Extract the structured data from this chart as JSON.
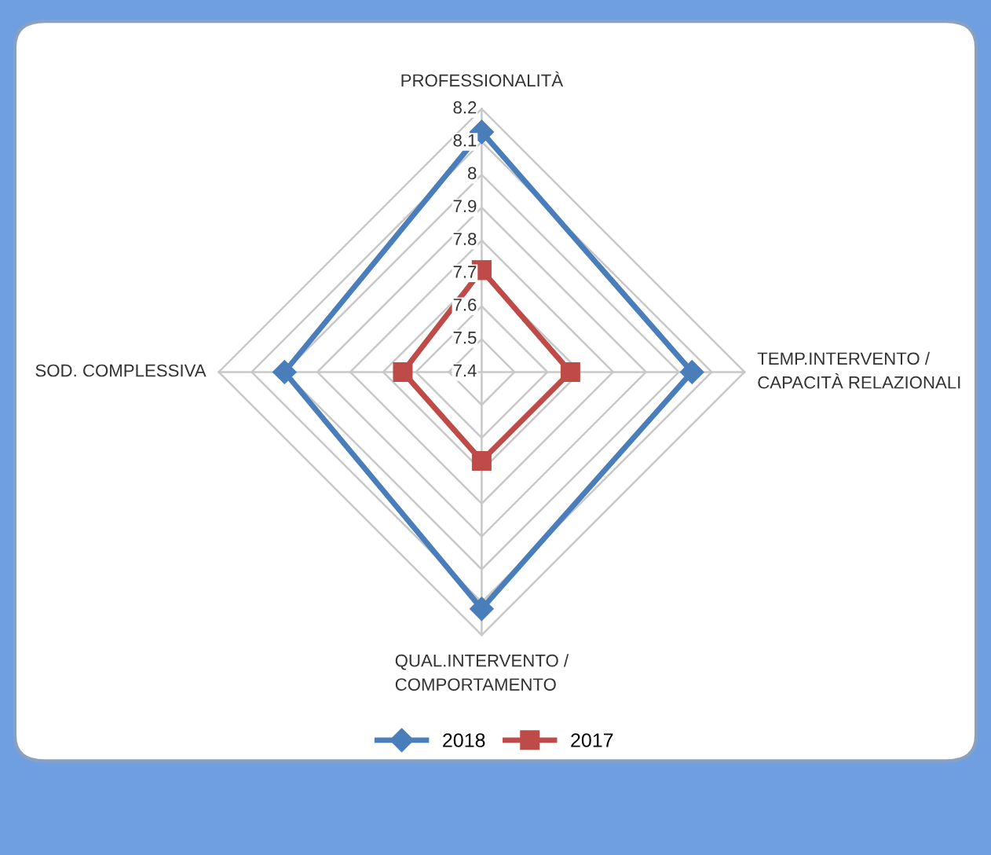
{
  "chart_data": {
    "type": "radar",
    "categories": [
      "PROFESSIONALITÀ",
      "TEMP.INTERVENTO /\nCAPACITÀ RELAZIONALI",
      "QUAL.INTERVENTO /\nCOMPORTAMENTO",
      "SOD. COMPLESSIVA"
    ],
    "series": [
      {
        "name": "2018",
        "color": "#4a7ebb",
        "marker": "diamond",
        "values": [
          8.13,
          8.04,
          8.12,
          8.0
        ]
      },
      {
        "name": "2017",
        "color": "#be4b48",
        "marker": "square",
        "values": [
          7.71,
          7.67,
          7.67,
          7.64
        ]
      }
    ],
    "ylim": [
      7.4,
      8.2
    ],
    "yticks": [
      7.4,
      7.5,
      7.6,
      7.7,
      7.8,
      7.9,
      8,
      8.1,
      8.2
    ],
    "legend": "bottom"
  }
}
